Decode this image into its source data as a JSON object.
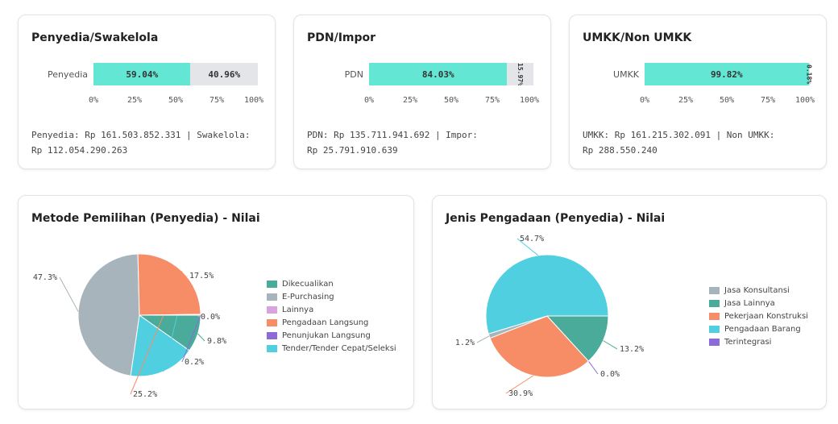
{
  "cards": [
    {
      "title": "Penyedia/Swakelola",
      "bar_label": "Penyedia",
      "segments": [
        {
          "label": "59.04%",
          "value": 59.04
        },
        {
          "label": "40.96%",
          "value": 40.96
        }
      ],
      "ticks": [
        "0%",
        "25%",
        "50%",
        "75%",
        "100%"
      ],
      "summary_line1": "Penyedia: Rp 161.503.852.331 | Swakelola:",
      "summary_line2": "Rp 112.054.290.263"
    },
    {
      "title": "PDN/Impor",
      "bar_label": "PDN",
      "segments": [
        {
          "label": "84.03%",
          "value": 84.03
        },
        {
          "label": "15.97%",
          "value": 15.97
        }
      ],
      "ticks": [
        "0%",
        "25%",
        "50%",
        "75%",
        "100%"
      ],
      "summary_line1": "PDN: Rp 135.711.941.692 | Impor:",
      "summary_line2": "Rp 25.791.910.639"
    },
    {
      "title": "UMKK/Non UMKK",
      "bar_label": "UMKK",
      "segments": [
        {
          "label": "99.82%",
          "value": 99.82
        },
        {
          "label": "0.18%",
          "value": 0.18
        }
      ],
      "ticks": [
        "0%",
        "25%",
        "50%",
        "75%",
        "100%"
      ],
      "summary_line1": "UMKK: Rp 161.215.302.091 | Non UMKK:",
      "summary_line2": "Rp 288.550.240"
    }
  ],
  "pies": [
    {
      "title": "Metode Pemilihan (Penyedia) - Nilai",
      "legend": [
        {
          "name": "Dikecualikan",
          "color": "#4aab9a"
        },
        {
          "name": "E-Purchasing",
          "color": "#a8b4bb"
        },
        {
          "name": "Lainnya",
          "color": "#d9a3e0"
        },
        {
          "name": "Pengadaan Langsung",
          "color": "#f78d66"
        },
        {
          "name": "Penunjukan Langsung",
          "color": "#8c6bd9"
        },
        {
          "name": "Tender/Tender Cepat/Seleksi",
          "color": "#4fcfdf"
        }
      ]
    },
    {
      "title": "Jenis Pengadaan (Penyedia) - Nilai",
      "legend": [
        {
          "name": "Jasa Konsultansi",
          "color": "#a8b4bb"
        },
        {
          "name": "Jasa Lainnya",
          "color": "#4aab9a"
        },
        {
          "name": "Pekerjaan Konstruksi",
          "color": "#f78d66"
        },
        {
          "name": "Pengadaan Barang",
          "color": "#4fcfdf"
        },
        {
          "name": "Terintegrasi",
          "color": "#8c6bd9"
        }
      ]
    }
  ],
  "chart_data": [
    {
      "type": "bar",
      "title": "Penyedia/Swakelola",
      "categories": [
        "Penyedia"
      ],
      "series": [
        {
          "name": "Penyedia",
          "values": [
            59.04
          ]
        },
        {
          "name": "Swakelola",
          "values": [
            40.96
          ]
        }
      ],
      "xlim": [
        0,
        100
      ]
    },
    {
      "type": "bar",
      "title": "PDN/Impor",
      "categories": [
        "PDN"
      ],
      "series": [
        {
          "name": "PDN",
          "values": [
            84.03
          ]
        },
        {
          "name": "Impor",
          "values": [
            15.97
          ]
        }
      ],
      "xlim": [
        0,
        100
      ]
    },
    {
      "type": "bar",
      "title": "UMKK/Non UMKK",
      "categories": [
        "UMKK"
      ],
      "series": [
        {
          "name": "UMKK",
          "values": [
            99.82
          ]
        },
        {
          "name": "Non UMKK",
          "values": [
            0.18
          ]
        }
      ],
      "xlim": [
        0,
        100
      ]
    },
    {
      "type": "pie",
      "title": "Metode Pemilihan (Penyedia) - Nilai",
      "slices": [
        {
          "name": "Dikecualikan",
          "value": 9.8,
          "label": "9.8%",
          "color": "#4aab9a"
        },
        {
          "name": "Tender/Tender Cepat/Seleksi",
          "value": 17.5,
          "label": "17.5%",
          "color": "#4fcfdf"
        },
        {
          "name": "E-Purchasing",
          "value": 47.3,
          "label": "47.3%",
          "color": "#a8b4bb"
        },
        {
          "name": "Pengadaan Langsung",
          "value": 25.2,
          "label": "25.2%",
          "color": "#f78d66"
        },
        {
          "name": "Penunjukan Langsung",
          "value": 0.2,
          "label": "0.2%",
          "color": "#8c6bd9"
        },
        {
          "name": "Lainnya",
          "value": 0.0,
          "label": "0.0%",
          "color": "#d9a3e0"
        }
      ],
      "legend_position": "right"
    },
    {
      "type": "pie",
      "title": "Jenis Pengadaan (Penyedia) - Nilai",
      "slices": [
        {
          "name": "Jasa Lainnya",
          "value": 13.2,
          "label": "13.2%",
          "color": "#4aab9a"
        },
        {
          "name": "Terintegrasi",
          "value": 0.0,
          "label": "0.0%",
          "color": "#8c6bd9"
        },
        {
          "name": "Pekerjaan Konstruksi",
          "value": 30.9,
          "label": "30.9%",
          "color": "#f78d66"
        },
        {
          "name": "Jasa Konsultansi",
          "value": 1.2,
          "label": "1.2%",
          "color": "#a8b4bb"
        },
        {
          "name": "Pengadaan Barang",
          "value": 54.7,
          "label": "54.7%",
          "color": "#4fcfdf"
        }
      ],
      "legend_position": "right"
    }
  ]
}
